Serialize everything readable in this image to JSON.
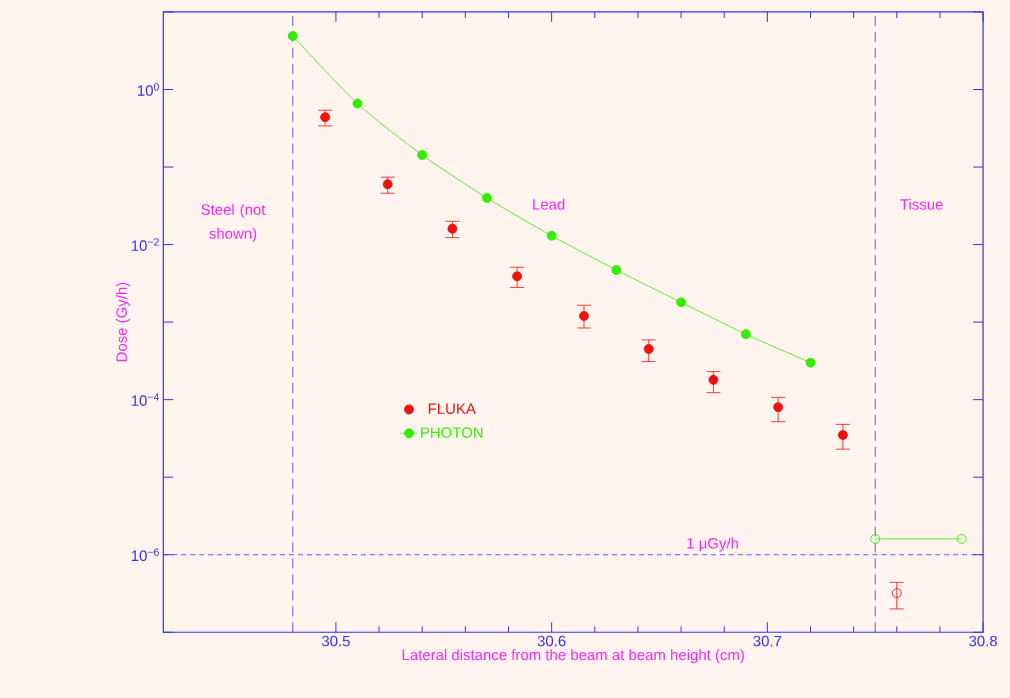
{
  "chart_data": {
    "type": "scatter",
    "xlabel": "Lateral distance from the beam at beam height (cm)",
    "ylabel": "Dose (Gy/h)",
    "log": "y",
    "xlim": [
      30.42,
      30.8
    ],
    "ylim": [
      1e-07,
      10
    ],
    "xticks": [
      30.5,
      30.6,
      30.7,
      30.8
    ],
    "yticks": [
      {
        "value": 10,
        "label": null
      },
      {
        "value": 1,
        "label": "10$^{0}$"
      },
      {
        "value": 0.1,
        "label": null
      },
      {
        "value": 0.01,
        "label": "10$^{−2}$"
      },
      {
        "value": 0.001,
        "label": null
      },
      {
        "value": 0.0001,
        "label": "10$^{−4}$"
      },
      {
        "value": 1e-05,
        "label": null
      },
      {
        "value": 1e-06,
        "label": "10$^{−6}$"
      },
      {
        "value": 1e-07,
        "label": null
      }
    ],
    "legend": "left",
    "marker": "circle",
    "series": [
      {
        "name": "FLUKA",
        "color": "#ee1111",
        "x": [
          30.495,
          30.524,
          30.554,
          30.584,
          30.615,
          30.645,
          30.675,
          30.705,
          30.735
        ],
        "values": [
          0.44,
          0.06,
          0.016,
          0.0039,
          0.0012,
          0.00045,
          0.00018,
          8e-05,
          3.5e-05
        ],
        "errors": [
          [
            0.34,
            0.54
          ],
          [
            0.046,
            0.074
          ],
          [
            0.0123,
            0.02
          ],
          [
            0.0028,
            0.0051
          ],
          [
            0.00084,
            0.00165
          ],
          [
            0.00031,
            0.00059
          ],
          [
            0.000123,
            0.00023
          ],
          [
            5.2e-05,
            0.000107
          ],
          [
            2.3e-05,
            4.8e-05
          ]
        ]
      },
      {
        "name": "PHOTON",
        "type": "line",
        "color": "#33ee00",
        "x": [
          30.48,
          30.51,
          30.54,
          30.57,
          30.6,
          30.63,
          30.66,
          30.69,
          30.72
        ],
        "values": [
          4.9,
          0.66,
          0.143,
          0.04,
          0.013,
          0.0047,
          0.0018,
          0.0007,
          0.0003
        ]
      },
      {
        "color": "#ee1111",
        "x": [
          30.76
        ],
        "values": [
          3.2e-07
        ],
        "errors": [
          [
            2e-07,
            4.4e-07
          ]
        ]
      },
      {
        "type": "line",
        "color": "#33ee00",
        "x": [
          30.75,
          30.79
        ],
        "values": [
          1.6e-06,
          1.6e-06
        ]
      }
    ],
    "ref_lines": [
      {
        "axis": "y",
        "value": 1e-06,
        "label": "1 μGy/h",
        "color": "#3333ee",
        "line_style": "dashed"
      },
      {
        "axis": "x",
        "value": 30.48,
        "color": "#3333ee",
        "line_style": "dashed"
      },
      {
        "axis": "x",
        "value": 30.75,
        "color": "#3333ee",
        "line_style": "dashed"
      }
    ],
    "annotations": [
      "Steel (not shown)",
      "Lead",
      "Tissue"
    ]
  }
}
